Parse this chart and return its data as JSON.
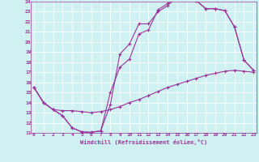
{
  "title": "",
  "xlabel": "Windchill (Refroidissement éolien,°C)",
  "ylabel": "",
  "bg_color": "#cff1f1",
  "line_color": "#993399",
  "grid_color": "#ffffff",
  "xmin": 0,
  "xmax": 23,
  "ymin": 11,
  "ymax": 24,
  "line1_x": [
    0,
    1,
    2,
    3,
    4,
    5,
    6,
    7,
    8,
    9,
    10,
    11,
    12,
    13,
    14,
    15,
    16,
    17,
    18,
    19,
    20,
    21,
    22,
    23
  ],
  "line1_y": [
    15.5,
    14.0,
    13.3,
    12.7,
    11.5,
    11.1,
    11.05,
    11.2,
    15.0,
    17.5,
    18.3,
    20.8,
    21.2,
    23.2,
    23.8,
    24.5,
    24.5,
    24.1,
    23.3,
    23.3,
    23.1,
    21.5,
    18.2,
    17.2
  ],
  "line2_x": [
    0,
    1,
    2,
    3,
    4,
    5,
    6,
    7,
    8,
    9,
    10,
    11,
    12,
    13,
    14,
    15,
    16,
    17,
    18,
    19,
    20,
    21,
    22,
    23
  ],
  "line2_y": [
    15.5,
    14.0,
    13.3,
    12.7,
    11.5,
    11.1,
    11.05,
    11.2,
    13.8,
    18.8,
    19.8,
    21.8,
    21.8,
    23.0,
    23.6,
    24.5,
    24.5,
    24.1,
    23.3,
    23.3,
    23.1,
    21.5,
    18.2,
    17.2
  ],
  "line3_x": [
    0,
    1,
    2,
    3,
    4,
    5,
    6,
    7,
    8,
    9,
    10,
    11,
    12,
    13,
    14,
    15,
    16,
    17,
    18,
    19,
    20,
    21,
    22,
    23
  ],
  "line3_y": [
    15.5,
    14.0,
    13.3,
    13.2,
    13.2,
    13.1,
    13.0,
    13.1,
    13.3,
    13.6,
    14.0,
    14.3,
    14.7,
    15.1,
    15.5,
    15.8,
    16.1,
    16.4,
    16.7,
    16.9,
    17.1,
    17.2,
    17.1,
    17.0
  ]
}
